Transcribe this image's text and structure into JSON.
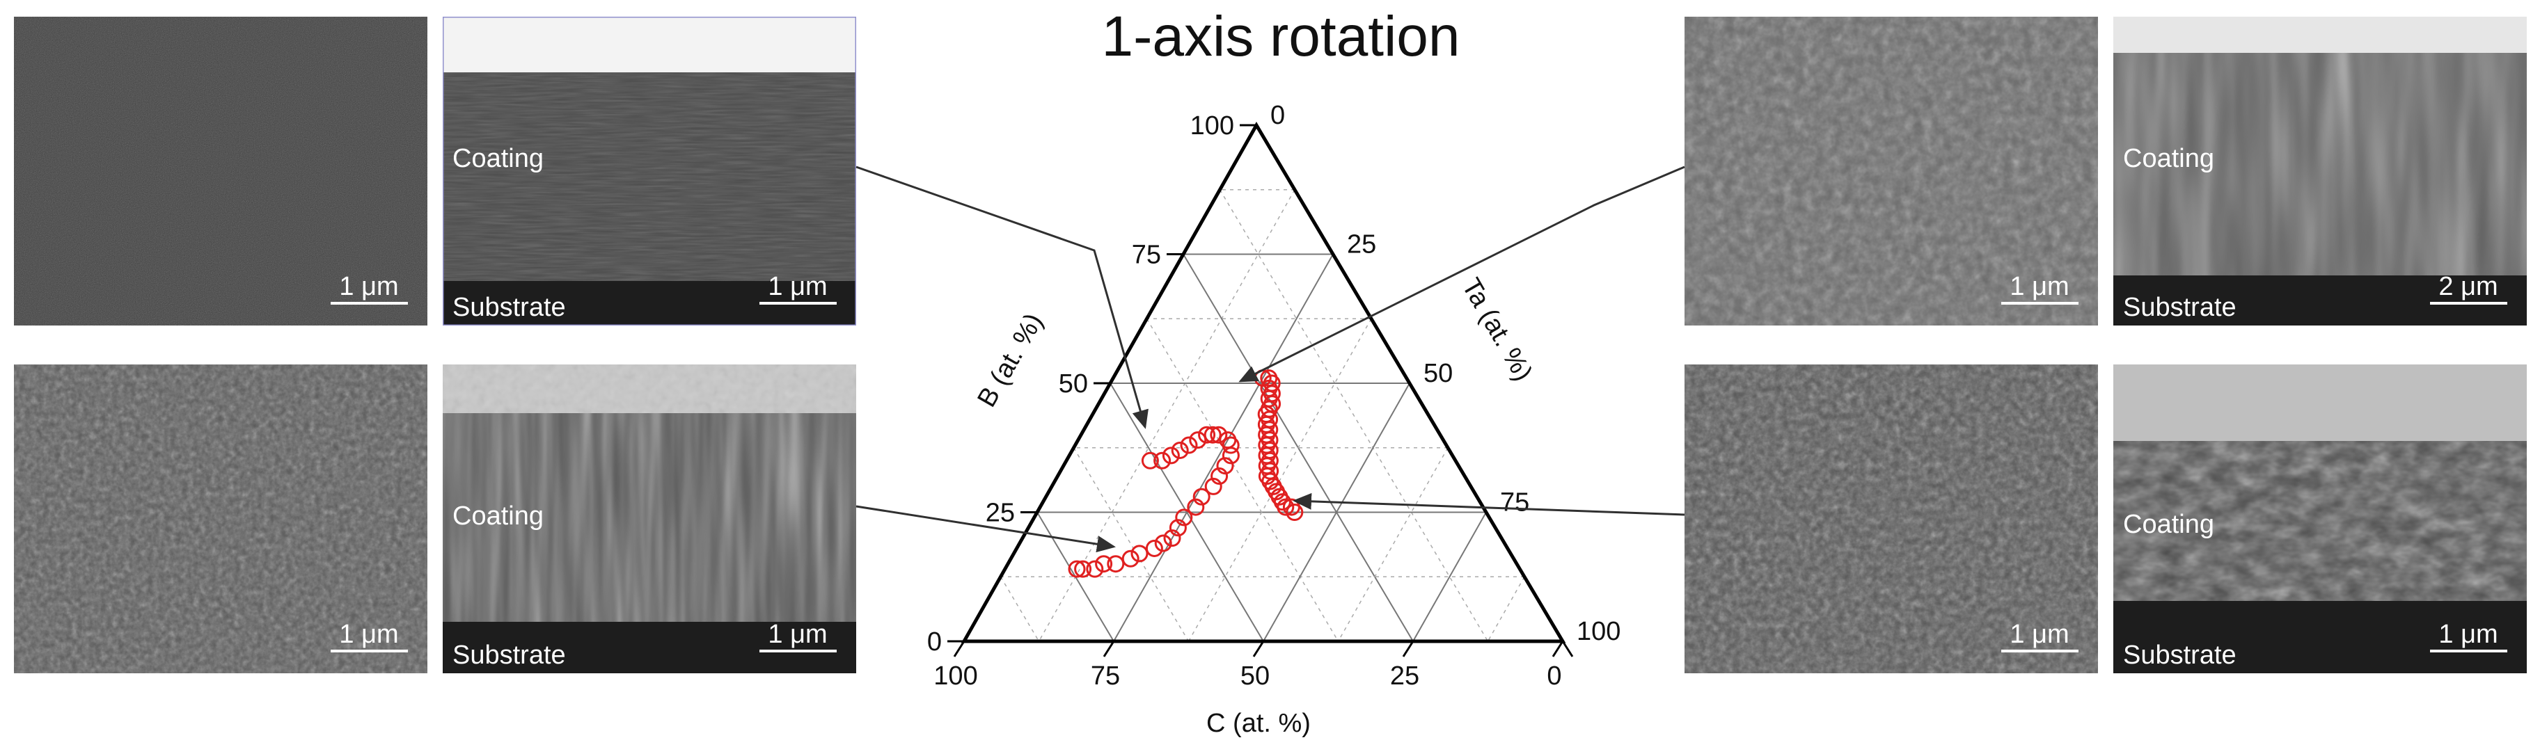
{
  "title": "1-axis rotation",
  "panels": {
    "tl_surface": {
      "scale": "1 μm"
    },
    "tl_cross": {
      "coating": "Coating",
      "substrate": "Substrate",
      "scale": "1 μm"
    },
    "bl_surface": {
      "scale": "1 μm"
    },
    "bl_cross": {
      "coating": "Coating",
      "substrate": "Substrate",
      "scale": "1 μm"
    },
    "tr_surface": {
      "scale": "1 μm"
    },
    "tr_cross": {
      "coating": "Coating",
      "substrate": "Substrate",
      "scale": "2 μm"
    },
    "br_surface": {
      "scale": "1 μm"
    },
    "br_cross": {
      "coating": "Coating",
      "substrate": "Substrate",
      "scale": "1 μm"
    }
  },
  "chart_data": {
    "type": "scatter",
    "subtype": "ternary",
    "axes": {
      "B": {
        "label": "B (at. %)",
        "ticks": [
          "0",
          "25",
          "50",
          "75",
          "100"
        ]
      },
      "Ta": {
        "label": "Ta (at. %)",
        "ticks": [
          "0",
          "25",
          "50",
          "75",
          "100"
        ]
      },
      "C": {
        "label": "C (at. %)",
        "ticks": [
          "100",
          "75",
          "50",
          "25",
          "0"
        ]
      }
    },
    "grid": true,
    "marker_color": "#e02020",
    "series": [
      {
        "points_BTaC": [
          [
            51,
            25,
            24
          ],
          [
            51,
            26,
            23
          ],
          [
            50,
            27,
            23
          ],
          [
            49,
            27,
            24
          ],
          [
            48,
            28,
            24
          ],
          [
            47,
            28,
            25
          ],
          [
            46,
            29,
            25
          ],
          [
            45,
            29,
            26
          ],
          [
            44,
            29,
            27
          ],
          [
            43,
            30,
            27
          ],
          [
            42,
            30,
            28
          ],
          [
            41,
            31,
            28
          ],
          [
            40,
            31,
            29
          ],
          [
            39,
            32,
            29
          ],
          [
            38,
            32,
            30
          ],
          [
            37,
            33,
            30
          ],
          [
            36,
            33,
            31
          ],
          [
            35,
            34,
            31
          ],
          [
            34,
            34,
            32
          ],
          [
            33,
            35,
            32
          ],
          [
            32,
            35,
            33
          ],
          [
            31,
            36,
            33
          ],
          [
            30,
            37,
            33
          ],
          [
            29,
            38,
            33
          ],
          [
            28,
            39,
            33
          ],
          [
            27,
            40,
            33
          ],
          [
            26,
            41,
            33
          ],
          [
            26,
            42,
            32
          ],
          [
            25,
            43,
            32
          ],
          [
            35,
            14,
            51
          ],
          [
            35,
            16,
            49
          ],
          [
            36,
            17,
            47
          ],
          [
            37,
            18,
            45
          ],
          [
            38,
            19,
            43
          ],
          [
            39,
            20,
            41
          ],
          [
            40,
            21,
            39
          ],
          [
            40,
            22,
            38
          ],
          [
            40,
            23,
            37
          ],
          [
            39,
            25,
            36
          ],
          [
            38,
            26,
            36
          ],
          [
            36,
            27,
            37
          ],
          [
            34,
            27,
            39
          ],
          [
            32,
            27,
            41
          ],
          [
            30,
            27,
            43
          ],
          [
            28,
            26,
            46
          ],
          [
            26,
            26,
            48
          ],
          [
            24,
            25,
            51
          ],
          [
            22,
            25,
            53
          ],
          [
            20,
            25,
            55
          ],
          [
            19,
            24,
            57
          ],
          [
            18,
            23,
            59
          ],
          [
            17,
            21,
            62
          ],
          [
            16,
            20,
            64
          ],
          [
            15,
            18,
            67
          ],
          [
            15,
            16,
            69
          ],
          [
            14,
            15,
            71
          ],
          [
            14,
            13,
            73
          ],
          [
            14,
            12,
            74
          ]
        ]
      }
    ],
    "arrow_color": "#303030"
  }
}
